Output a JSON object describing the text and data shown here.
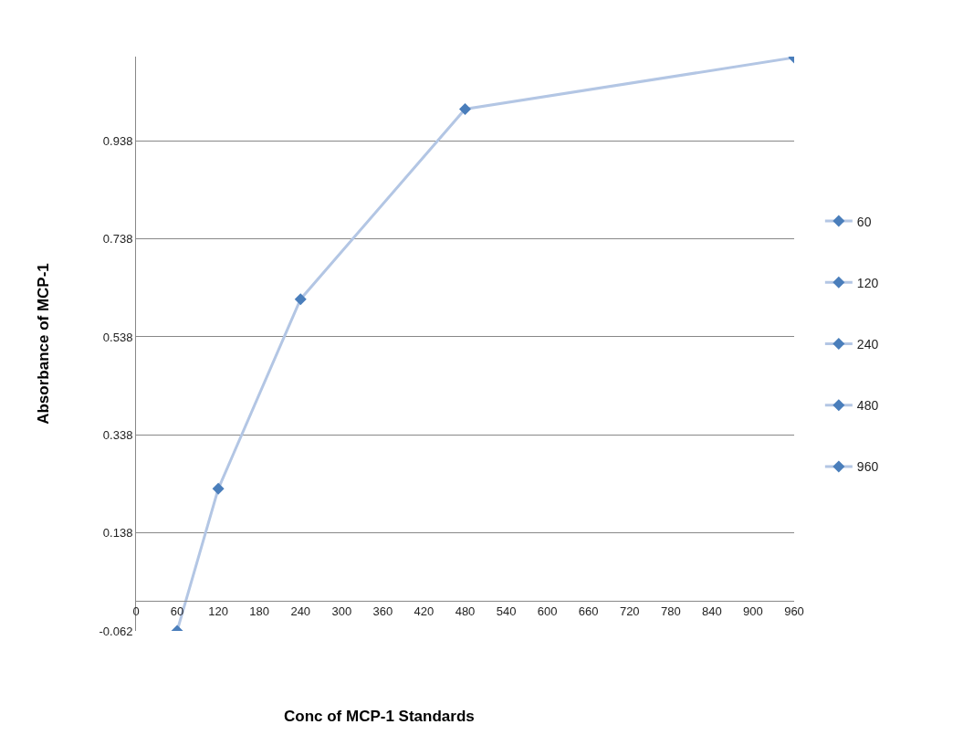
{
  "chart_data": {
    "type": "scatter",
    "xlabel": "Conc of MCP-1 Standards",
    "ylabel": "Absorbance of MCP-1",
    "xlim": [
      0,
      960
    ],
    "xticks": [
      0,
      60,
      120,
      180,
      240,
      300,
      360,
      420,
      480,
      540,
      600,
      660,
      720,
      780,
      840,
      900,
      960
    ],
    "ylim": [
      -0.062,
      1.11
    ],
    "yticks": [
      -0.062,
      0.138,
      0.338,
      0.538,
      0.738,
      0.938
    ],
    "grid": "y",
    "legend": "right",
    "marker": "diamond",
    "series": [
      {
        "type": "line",
        "marker": "none",
        "color": "#b3c6e4",
        "x": [
          60,
          120,
          240,
          480,
          960
        ],
        "values": [
          -0.062,
          0.228,
          0.615,
          1.003,
          1.108
        ]
      },
      {
        "name": "60",
        "color": "#4a7ebb",
        "x": [
          60
        ],
        "values": [
          -0.062
        ]
      },
      {
        "name": "120",
        "color": "#4a7ebb",
        "x": [
          120
        ],
        "values": [
          0.228
        ]
      },
      {
        "name": "240",
        "color": "#4a7ebb",
        "x": [
          240
        ],
        "values": [
          0.615
        ]
      },
      {
        "name": "480",
        "color": "#4a7ebb",
        "x": [
          480
        ],
        "values": [
          1.003
        ]
      },
      {
        "name": "960",
        "color": "#4a7ebb",
        "x": [
          960
        ],
        "values": [
          1.108
        ]
      }
    ]
  }
}
